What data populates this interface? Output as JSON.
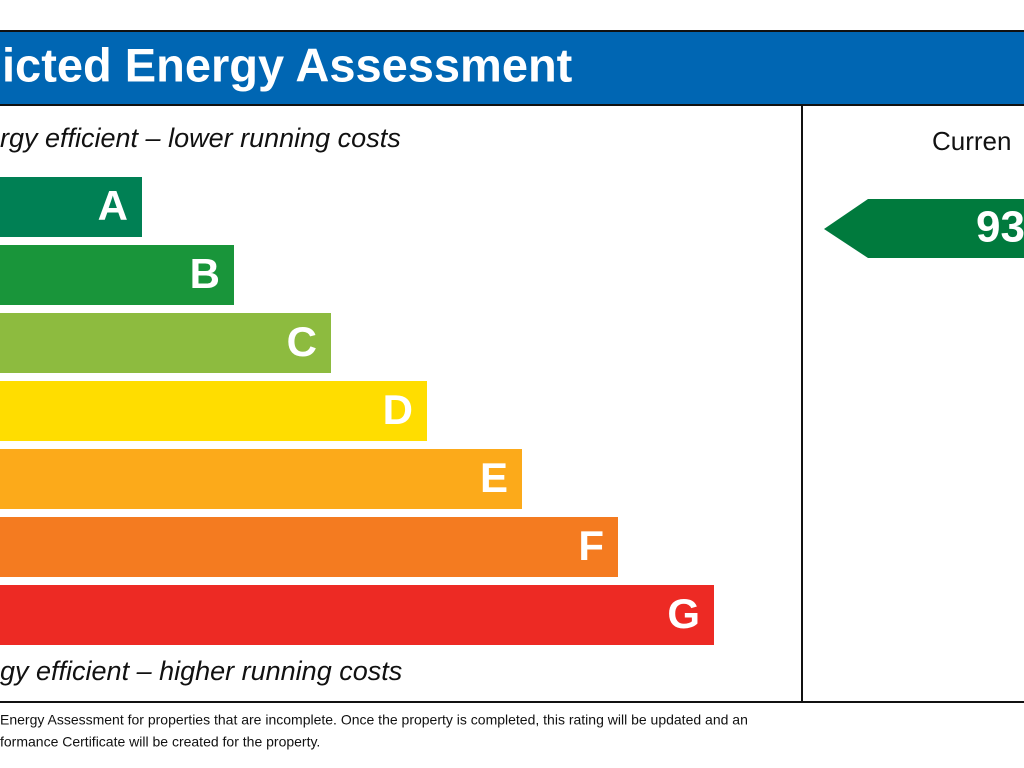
{
  "header": {
    "title": "icted Energy Assessment"
  },
  "scale": {
    "top_label": "rgy efficient – lower running costs",
    "bottom_label": "gy efficient – higher running costs",
    "bands": [
      {
        "letter": "A",
        "color": "#008054"
      },
      {
        "letter": "B",
        "color": "#19953a"
      },
      {
        "letter": "C",
        "color": "#8dbb3f"
      },
      {
        "letter": "D",
        "color": "#ffdd00"
      },
      {
        "letter": "E",
        "color": "#fcaa1a"
      },
      {
        "letter": "F",
        "color": "#f47b20"
      },
      {
        "letter": "G",
        "color": "#ed2a24"
      }
    ]
  },
  "current": {
    "heading": "Curren",
    "rating": "93",
    "color": "#007a3d"
  },
  "footer": {
    "lines": [
      " Energy Assessment for properties that are incomplete. Once the property is completed, this rating will be updated and an",
      "formance Certificate will be created for the property."
    ]
  }
}
